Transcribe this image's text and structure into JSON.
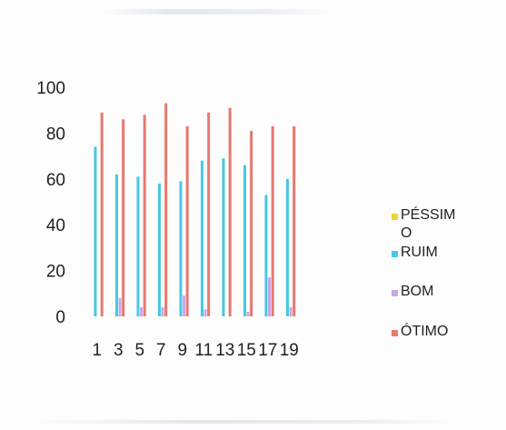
{
  "chart_data": {
    "type": "bar",
    "categories": [
      1,
      3,
      5,
      7,
      9,
      11,
      13,
      15,
      17,
      19
    ],
    "series": [
      {
        "name": "PÉSSIMO",
        "color": "#f2d23a",
        "values": [
          0,
          0,
          0,
          0,
          0,
          0,
          0,
          0,
          0,
          0
        ]
      },
      {
        "name": "RUIM",
        "color": "#45c8e3",
        "values": [
          74,
          62,
          61,
          58,
          59,
          68,
          69,
          66,
          53,
          60
        ]
      },
      {
        "name": "BOM",
        "color": "#c8a6ea",
        "values": [
          0,
          8,
          4,
          4,
          9,
          3,
          0,
          2,
          17,
          4
        ]
      },
      {
        "name": "ÓTIMO",
        "color": "#e8786e",
        "values": [
          89,
          86,
          88,
          93,
          83,
          89,
          91,
          81,
          83,
          83
        ]
      }
    ],
    "y_ticks": [
      0,
      20,
      40,
      60,
      80,
      100
    ],
    "ylim": [
      0,
      100
    ],
    "grid": false,
    "legend_position": "right",
    "title": "",
    "xlabel": "",
    "ylabel": ""
  }
}
